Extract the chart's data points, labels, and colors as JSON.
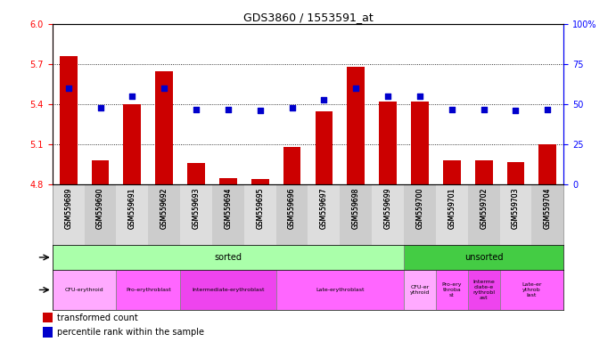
{
  "title": "GDS3860 / 1553591_at",
  "samples": [
    "GSM559689",
    "GSM559690",
    "GSM559691",
    "GSM559692",
    "GSM559693",
    "GSM559694",
    "GSM559695",
    "GSM559696",
    "GSM559697",
    "GSM559698",
    "GSM559699",
    "GSM559700",
    "GSM559701",
    "GSM559702",
    "GSM559703",
    "GSM559704"
  ],
  "bar_values": [
    5.76,
    4.98,
    5.4,
    5.65,
    4.96,
    4.85,
    4.84,
    5.08,
    5.35,
    5.68,
    5.42,
    5.42,
    4.98,
    4.98,
    4.97,
    5.1
  ],
  "dot_values": [
    60,
    48,
    55,
    60,
    47,
    47,
    46,
    48,
    53,
    60,
    55,
    55,
    47,
    47,
    46,
    47
  ],
  "ylim": [
    4.8,
    6.0
  ],
  "yticks": [
    4.8,
    5.1,
    5.4,
    5.7,
    6.0
  ],
  "y2ticks": [
    0,
    25,
    50,
    75,
    100
  ],
  "bar_color": "#cc0000",
  "dot_color": "#0000cc",
  "bg_color": "#ffffff",
  "protocol_sorted_color": "#aaffaa",
  "protocol_unsorted_color": "#44cc44",
  "dev_stage_row": [
    {
      "start": 0,
      "end": 2,
      "label": "CFU-erythroid",
      "color": "#ffaaff"
    },
    {
      "start": 2,
      "end": 4,
      "label": "Pro-erythroblast",
      "color": "#ff66ff"
    },
    {
      "start": 4,
      "end": 7,
      "label": "Intermediate-erythroblast",
      "color": "#ee44ee"
    },
    {
      "start": 7,
      "end": 11,
      "label": "Late-erythroblast",
      "color": "#ff66ff"
    },
    {
      "start": 11,
      "end": 12,
      "label": "CFU-er\nythroid",
      "color": "#ffaaff"
    },
    {
      "start": 12,
      "end": 13,
      "label": "Pro-ery\nthroba\nst",
      "color": "#ff66ff"
    },
    {
      "start": 13,
      "end": 14,
      "label": "Interme\ndiate-e\nrythrobl\nast",
      "color": "#ee44ee"
    },
    {
      "start": 14,
      "end": 16,
      "label": "Late-er\nythrob\nlast",
      "color": "#ff66ff"
    }
  ]
}
